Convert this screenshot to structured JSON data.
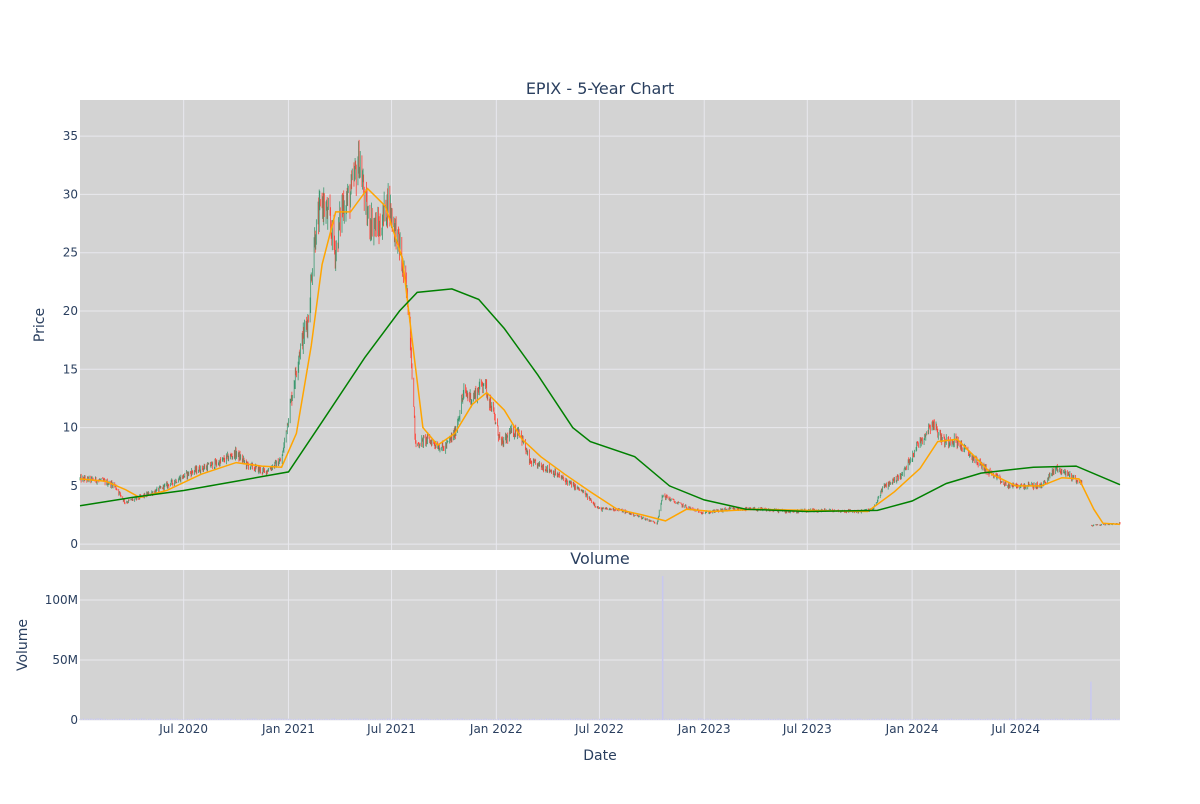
{
  "chart_data": [
    {
      "type": "candlestick",
      "title": "EPIX - 5-Year Chart",
      "xlabel": "",
      "ylabel": "Price",
      "ylim": [
        -0.5,
        38.1
      ],
      "xlim": [
        "2020-01-01",
        "2024-12-31"
      ],
      "y_ticks": [
        0,
        5,
        10,
        15,
        20,
        25,
        30,
        35
      ],
      "grid": true,
      "colors": {
        "up": "#3d9970",
        "down": "#ff4136",
        "ma_short": "#ffa500",
        "ma_long": "#008000",
        "plot_bg": "#d3d3d3",
        "grid": "#e8e8ee"
      },
      "price_anchors": [
        [
          "2020-01-01",
          5.6
        ],
        [
          "2020-02-01",
          5.5
        ],
        [
          "2020-03-01",
          5.1
        ],
        [
          "2020-03-20",
          3.6
        ],
        [
          "2020-04-15",
          4.0
        ],
        [
          "2020-05-15",
          4.6
        ],
        [
          "2020-06-15",
          5.4
        ],
        [
          "2020-07-15",
          6.2
        ],
        [
          "2020-09-01",
          7.0
        ],
        [
          "2020-10-01",
          7.8
        ],
        [
          "2020-10-20",
          6.8
        ],
        [
          "2020-11-20",
          6.2
        ],
        [
          "2020-12-20",
          7.2
        ],
        [
          "2021-01-01",
          11.0
        ],
        [
          "2021-01-20",
          16.5
        ],
        [
          "2021-02-05",
          19.5
        ],
        [
          "2021-02-15",
          26.0
        ],
        [
          "2021-03-01",
          29.5
        ],
        [
          "2021-03-15",
          27.5
        ],
        [
          "2021-03-25",
          25.0
        ],
        [
          "2021-04-05",
          29.0
        ],
        [
          "2021-04-20",
          30.0
        ],
        [
          "2021-05-05",
          33.0
        ],
        [
          "2021-05-20",
          28.0
        ],
        [
          "2021-06-10",
          27.0
        ],
        [
          "2021-06-25",
          29.5
        ],
        [
          "2021-07-15",
          25.5
        ],
        [
          "2021-08-01",
          20.0
        ],
        [
          "2021-08-12",
          8.5
        ],
        [
          "2021-09-01",
          9.0
        ],
        [
          "2021-10-01",
          8.2
        ],
        [
          "2021-10-20",
          9.5
        ],
        [
          "2021-11-05",
          13.0
        ],
        [
          "2021-11-20",
          12.5
        ],
        [
          "2021-12-10",
          14.0
        ],
        [
          "2021-12-25",
          11.5
        ],
        [
          "2022-01-10",
          8.5
        ],
        [
          "2022-01-25",
          9.5
        ],
        [
          "2022-02-10",
          9.8
        ],
        [
          "2022-03-01",
          7.0
        ],
        [
          "2022-04-01",
          6.5
        ],
        [
          "2022-05-01",
          5.5
        ],
        [
          "2022-06-01",
          4.5
        ],
        [
          "2022-07-01",
          3.0
        ],
        [
          "2022-08-01",
          3.0
        ],
        [
          "2022-09-01",
          2.5
        ],
        [
          "2022-10-10",
          1.8
        ],
        [
          "2022-10-20",
          4.2
        ],
        [
          "2022-11-15",
          3.5
        ],
        [
          "2022-12-10",
          3.0
        ],
        [
          "2023-01-01",
          2.7
        ],
        [
          "2023-02-15",
          3.0
        ],
        [
          "2023-04-01",
          3.0
        ],
        [
          "2023-06-01",
          2.8
        ],
        [
          "2023-08-01",
          2.9
        ],
        [
          "2023-10-01",
          2.8
        ],
        [
          "2023-10-25",
          3.0
        ],
        [
          "2023-11-10",
          4.8
        ],
        [
          "2023-12-15",
          6.0
        ],
        [
          "2024-01-10",
          8.5
        ],
        [
          "2024-01-25",
          9.5
        ],
        [
          "2024-02-05",
          10.5
        ],
        [
          "2024-02-25",
          8.8
        ],
        [
          "2024-03-15",
          9.0
        ],
        [
          "2024-04-15",
          7.5
        ],
        [
          "2024-05-15",
          6.2
        ],
        [
          "2024-06-15",
          5.0
        ],
        [
          "2024-07-15",
          5.0
        ],
        [
          "2024-08-15",
          5.0
        ],
        [
          "2024-09-10",
          6.5
        ],
        [
          "2024-10-01",
          6.0
        ],
        [
          "2024-10-25",
          5.2
        ],
        [
          "2024-11-05",
          null
        ],
        [
          "2024-11-10",
          1.6
        ],
        [
          "2024-12-31",
          1.8
        ]
      ],
      "ma_short_anchors": [
        [
          "2020-01-01",
          5.6
        ],
        [
          "2020-02-15",
          5.4
        ],
        [
          "2020-03-20",
          4.7
        ],
        [
          "2020-04-15",
          4.0
        ],
        [
          "2020-06-01",
          4.6
        ],
        [
          "2020-08-01",
          6.0
        ],
        [
          "2020-10-01",
          7.0
        ],
        [
          "2020-11-15",
          6.7
        ],
        [
          "2020-12-20",
          6.6
        ],
        [
          "2021-01-15",
          9.5
        ],
        [
          "2021-02-10",
          17.0
        ],
        [
          "2021-03-01",
          24.0
        ],
        [
          "2021-03-25",
          28.5
        ],
        [
          "2021-04-20",
          28.5
        ],
        [
          "2021-05-20",
          30.5
        ],
        [
          "2021-06-20",
          29.0
        ],
        [
          "2021-07-20",
          24.5
        ],
        [
          "2021-08-10",
          16.0
        ],
        [
          "2021-08-25",
          10.0
        ],
        [
          "2021-09-20",
          8.5
        ],
        [
          "2021-10-20",
          9.5
        ],
        [
          "2021-11-20",
          12.0
        ],
        [
          "2021-12-15",
          13.0
        ],
        [
          "2022-01-15",
          11.5
        ],
        [
          "2022-02-15",
          9.0
        ],
        [
          "2022-03-20",
          7.5
        ],
        [
          "2022-05-01",
          6.0
        ],
        [
          "2022-06-15",
          4.5
        ],
        [
          "2022-08-01",
          3.0
        ],
        [
          "2022-09-15",
          2.5
        ],
        [
          "2022-10-25",
          2.0
        ],
        [
          "2022-12-01",
          3.0
        ],
        [
          "2023-01-15",
          2.8
        ],
        [
          "2023-04-01",
          3.0
        ],
        [
          "2023-07-01",
          2.9
        ],
        [
          "2023-10-15",
          2.8
        ],
        [
          "2023-12-01",
          4.5
        ],
        [
          "2024-01-15",
          6.5
        ],
        [
          "2024-02-15",
          8.8
        ],
        [
          "2024-03-20",
          9.0
        ],
        [
          "2024-04-20",
          7.5
        ],
        [
          "2024-05-20",
          6.0
        ],
        [
          "2024-07-01",
          5.0
        ],
        [
          "2024-08-15",
          5.0
        ],
        [
          "2024-09-20",
          5.7
        ],
        [
          "2024-10-20",
          5.6
        ],
        [
          "2024-11-15",
          3.0
        ],
        [
          "2024-12-01",
          1.8
        ],
        [
          "2024-12-31",
          1.7
        ]
      ],
      "ma_long_anchors": [
        [
          "2020-01-01",
          3.3
        ],
        [
          "2020-04-01",
          4.0
        ],
        [
          "2020-07-01",
          4.6
        ],
        [
          "2020-10-01",
          5.4
        ],
        [
          "2021-01-01",
          6.2
        ],
        [
          "2021-03-01",
          10.5
        ],
        [
          "2021-05-15",
          16.0
        ],
        [
          "2021-07-15",
          20.0
        ],
        [
          "2021-08-15",
          21.6
        ],
        [
          "2021-10-15",
          21.9
        ],
        [
          "2021-12-01",
          21.0
        ],
        [
          "2022-01-15",
          18.5
        ],
        [
          "2022-03-15",
          14.5
        ],
        [
          "2022-05-15",
          10.0
        ],
        [
          "2022-06-15",
          8.8
        ],
        [
          "2022-09-01",
          7.5
        ],
        [
          "2022-11-01",
          5.0
        ],
        [
          "2023-01-01",
          3.8
        ],
        [
          "2023-03-15",
          3.0
        ],
        [
          "2023-07-01",
          2.8
        ],
        [
          "2023-11-01",
          2.9
        ],
        [
          "2024-01-01",
          3.7
        ],
        [
          "2024-03-01",
          5.2
        ],
        [
          "2024-05-01",
          6.1
        ],
        [
          "2024-08-01",
          6.6
        ],
        [
          "2024-10-15",
          6.7
        ],
        [
          "2024-12-31",
          5.1
        ]
      ]
    },
    {
      "type": "bar",
      "title": "Volume",
      "xlabel": "Date",
      "ylabel": "Volume",
      "ylim": [
        0,
        125000000
      ],
      "y_ticks": [
        0,
        50000000,
        100000000
      ],
      "y_tick_labels": [
        "0",
        "50M",
        "100M"
      ],
      "x_ticks": [
        "2020-07-01",
        "2021-01-01",
        "2021-07-01",
        "2022-01-01",
        "2022-07-01",
        "2023-01-01",
        "2023-07-01",
        "2024-01-01",
        "2024-07-01"
      ],
      "x_tick_labels": [
        "Jul 2020",
        "Jan 2021",
        "Jul 2021",
        "Jan 2022",
        "Jul 2022",
        "Jan 2023",
        "Jul 2023",
        "Jan 2024",
        "Jul 2024"
      ],
      "bar_color": "#c8c8f0",
      "spikes": [
        [
          "2022-10-20",
          120000000
        ],
        [
          "2024-11-10",
          32000000
        ]
      ],
      "baseline_volume": 1000000
    }
  ]
}
